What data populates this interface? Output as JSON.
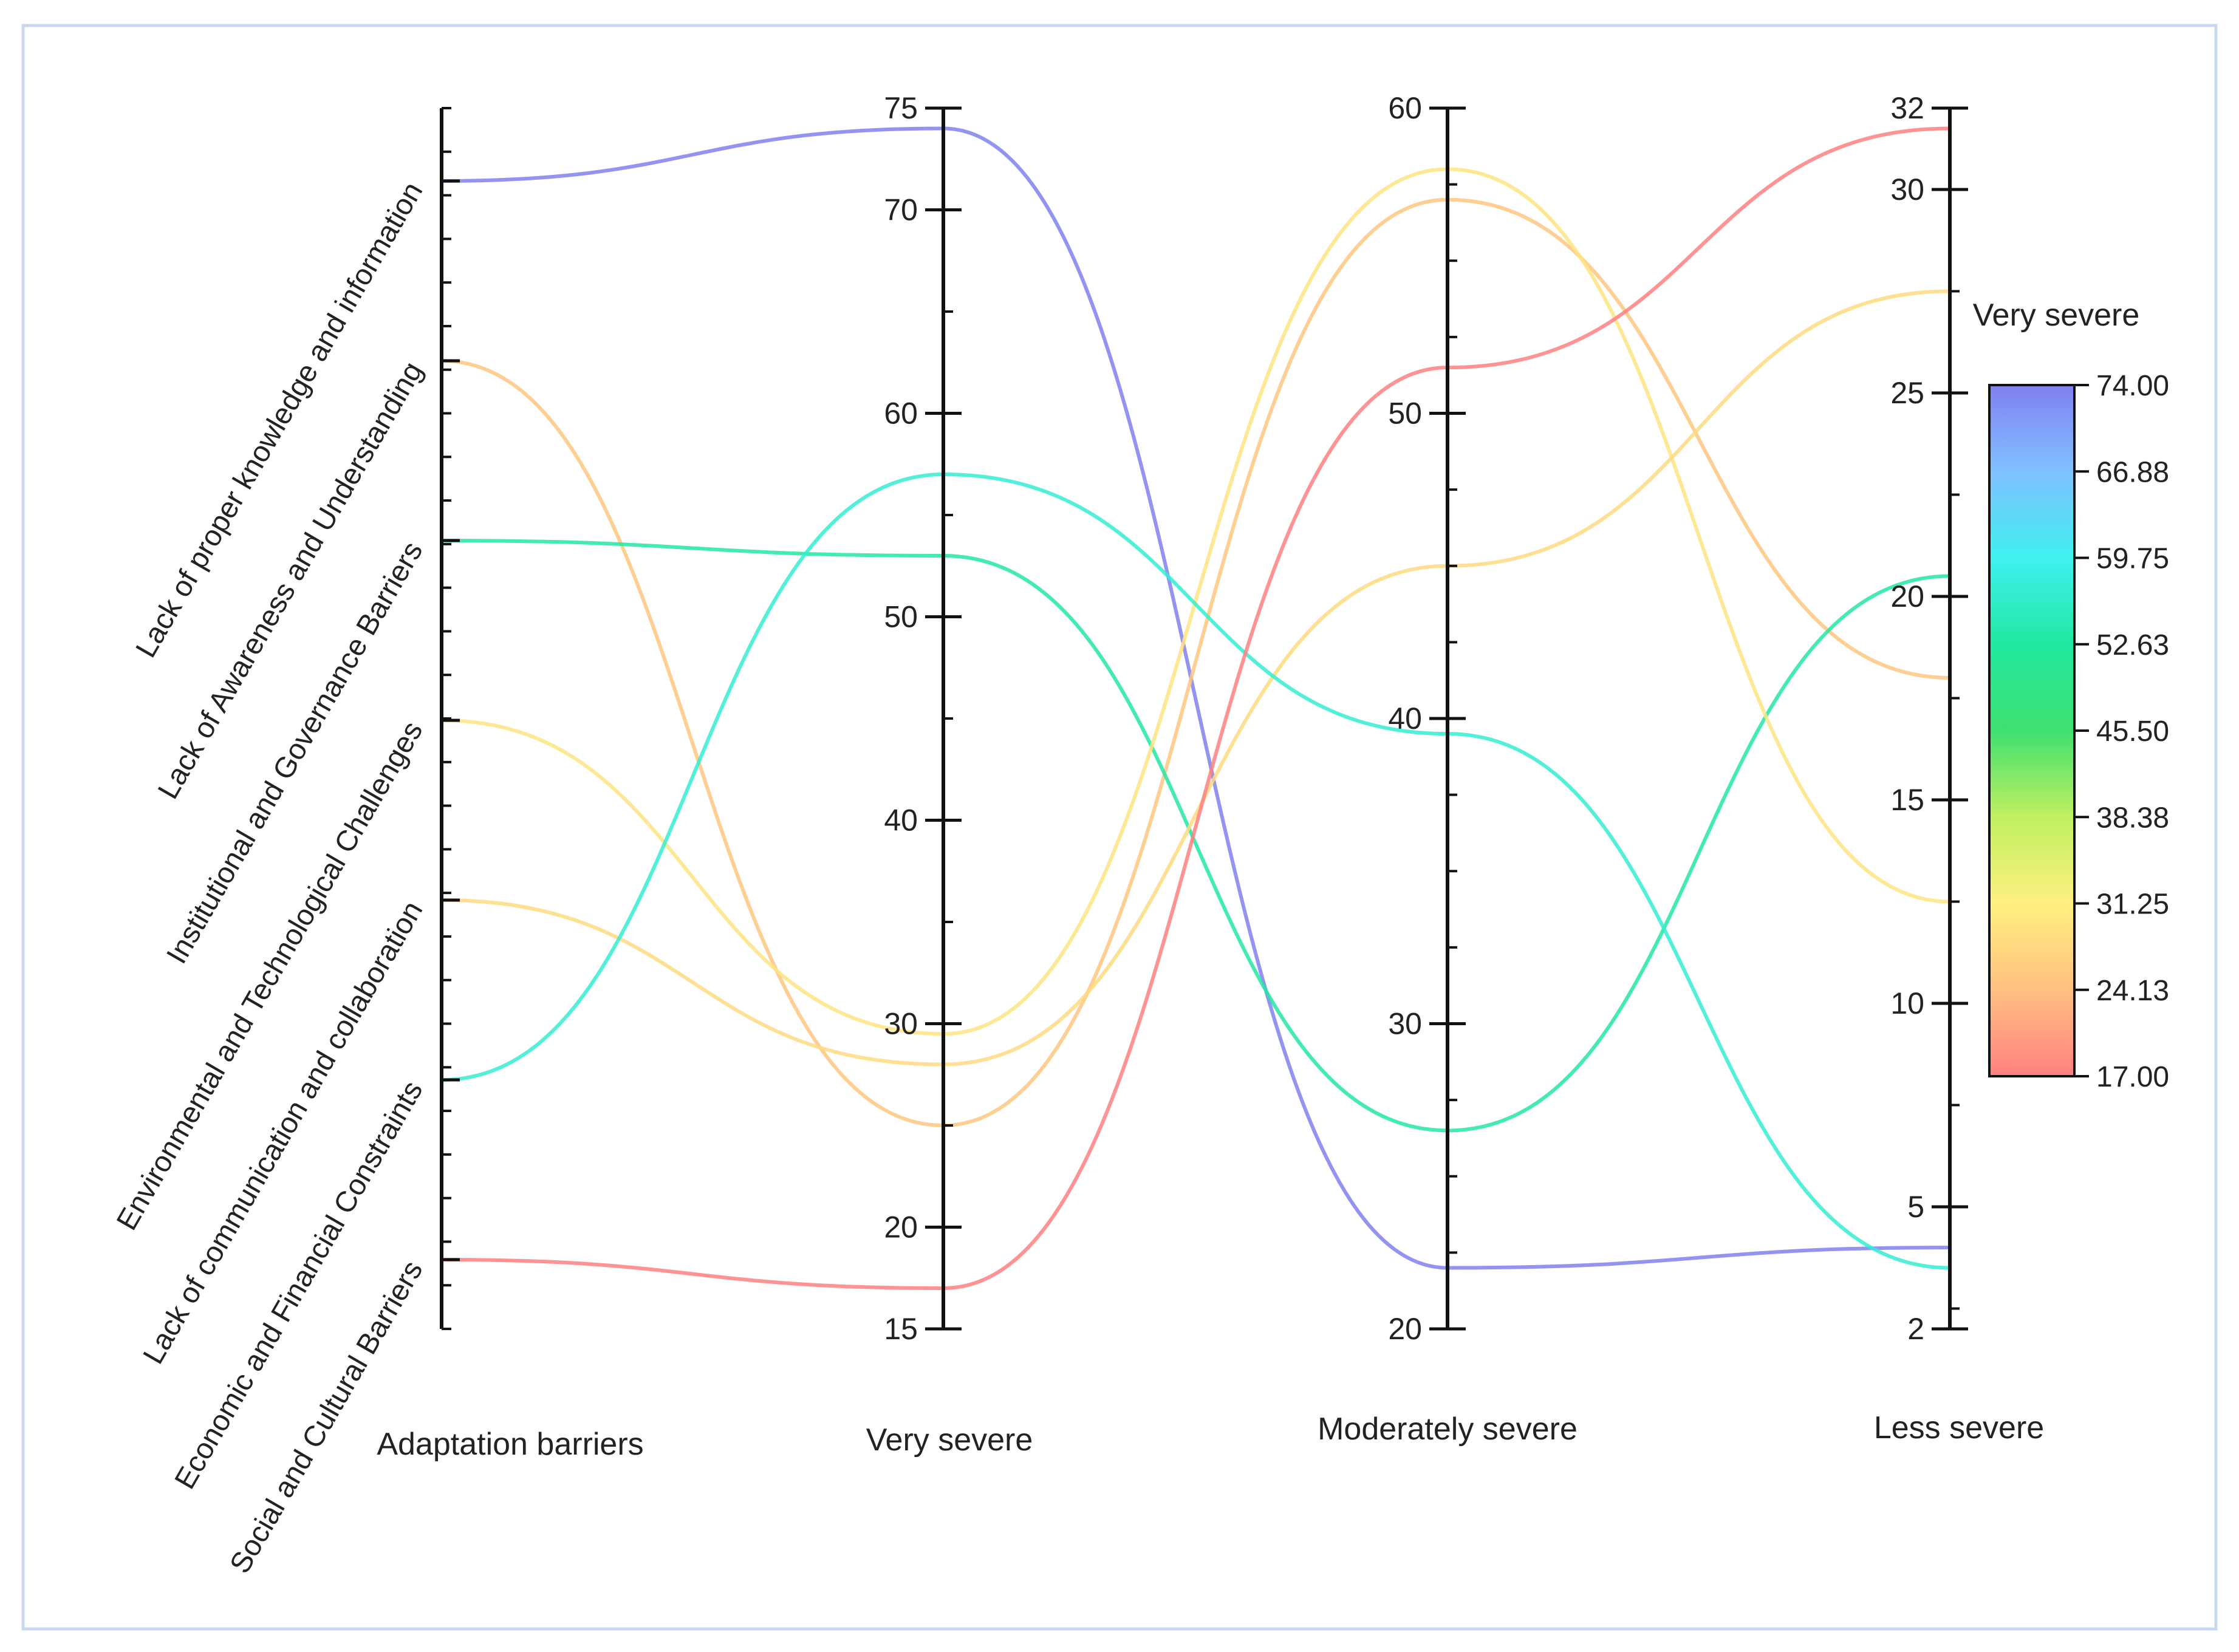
{
  "chart_data": {
    "type": "parallel-coordinates",
    "color_by": "Very severe",
    "axes": [
      {
        "key": "barrier",
        "label": "Adaptation barriers",
        "type": "categorical"
      },
      {
        "key": "very_severe",
        "label": "Very severe",
        "range": [
          15,
          75
        ],
        "ticks": [
          15,
          20,
          30,
          40,
          50,
          60,
          70,
          75
        ]
      },
      {
        "key": "moderately_severe",
        "label": "Moderately severe",
        "range": [
          20,
          60
        ],
        "ticks": [
          20,
          30,
          40,
          50,
          60
        ]
      },
      {
        "key": "less_severe",
        "label": "Less severe",
        "range": [
          2,
          32
        ],
        "ticks": [
          2,
          5,
          10,
          15,
          20,
          25,
          30,
          32
        ]
      }
    ],
    "categories": [
      "Lack of proper knowledge and information",
      "Lack of Awareness and Understanding",
      "Institutional and Governance Barriers",
      "Environmental and Technological Challenges",
      "Lack of communication and collaboration",
      "Economic and Financial Constraints",
      "Social and Cultural Barriers"
    ],
    "records": [
      {
        "barrier": "Lack of proper knowledge and information",
        "very_severe": 74,
        "moderately_severe": 22,
        "less_severe": 4
      },
      {
        "barrier": "Lack of Awareness and Understanding",
        "very_severe": 25,
        "moderately_severe": 57,
        "less_severe": 18
      },
      {
        "barrier": "Institutional and Governance Barriers",
        "very_severe": 53,
        "moderately_severe": 26.5,
        "less_severe": 20.5
      },
      {
        "barrier": "Environmental and Technological Challenges",
        "very_severe": 29.5,
        "moderately_severe": 58,
        "less_severe": 12.5
      },
      {
        "barrier": "Lack of communication and collaboration",
        "very_severe": 28,
        "moderately_severe": 45,
        "less_severe": 27.5
      },
      {
        "barrier": "Economic and Financial Constraints",
        "very_severe": 57,
        "moderately_severe": 39.5,
        "less_severe": 3.5
      },
      {
        "barrier": "Social and Cultural Barriers",
        "very_severe": 17,
        "moderately_severe": 51.5,
        "less_severe": 31.5
      }
    ],
    "colorbar": {
      "title": "Very severe",
      "min": 17.0,
      "max": 74.0,
      "tick_labels": [
        "74.00",
        "66.88",
        "59.75",
        "52.63",
        "45.50",
        "38.38",
        "31.25",
        "24.13",
        "17.00"
      ],
      "colors": [
        "#8080f0",
        "#80c0ff",
        "#40f0f0",
        "#20e8a0",
        "#40e070",
        "#c0f060",
        "#fff080",
        "#ffc080",
        "#ff8080"
      ]
    }
  }
}
